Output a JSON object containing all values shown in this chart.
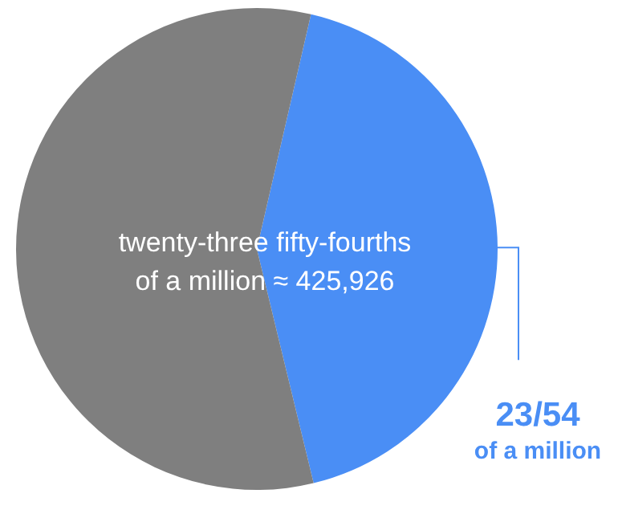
{
  "chart_data": {
    "type": "pie",
    "categories": [
      "23/54",
      null
    ],
    "values": [
      42.6,
      57.4
    ],
    "colors": [
      "#4a8ef5",
      "#7f7f7f"
    ],
    "annotations": [
      "twenty-three fifty-fourths",
      "of a million ≈ 425,926",
      "of a million"
    ],
    "legend": false
  }
}
